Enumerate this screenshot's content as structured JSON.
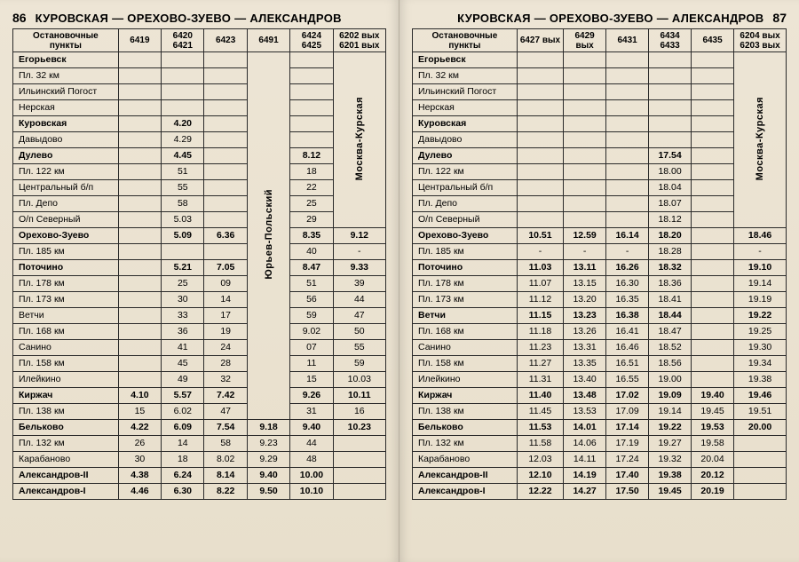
{
  "left": {
    "page_num": "86",
    "route": "КУРОВСКАЯ — ОРЕХОВО-ЗУЕВО — АЛЕКСАНДРОВ",
    "stops_header": "Остановочные пункты",
    "trains": [
      "6419",
      "6420\n6421",
      "6423",
      "6491",
      "6424\n6425",
      "6202 вых\n6201 вых"
    ],
    "vertical_labels": {
      "col5": "Юрьев-Польский",
      "col7": "Москва-Курская"
    },
    "rows": [
      {
        "stop": "Егорьевск",
        "bold": true,
        "c": [
          "",
          "",
          "",
          "",
          "",
          ""
        ]
      },
      {
        "stop": "Пл. 32 км",
        "bold": false,
        "c": [
          "",
          "",
          "",
          "",
          "",
          ""
        ]
      },
      {
        "stop": "Ильинский Погост",
        "bold": false,
        "c": [
          "",
          "",
          "",
          "",
          "",
          ""
        ]
      },
      {
        "stop": "Нерская",
        "bold": false,
        "c": [
          "",
          "",
          "",
          "",
          "",
          ""
        ]
      },
      {
        "stop": "Куровская",
        "bold": true,
        "c": [
          "",
          "4.20",
          "",
          "",
          "",
          ""
        ]
      },
      {
        "stop": "Давыдово",
        "bold": false,
        "c": [
          "",
          "4.29",
          "",
          "",
          "",
          ""
        ]
      },
      {
        "stop": "Дулево",
        "bold": true,
        "c": [
          "",
          "4.45",
          "",
          "",
          "8.12",
          ""
        ]
      },
      {
        "stop": "Пл. 122 км",
        "bold": false,
        "c": [
          "",
          "51",
          "",
          "",
          "18",
          ""
        ]
      },
      {
        "stop": "Центральный б/п",
        "bold": false,
        "c": [
          "",
          "55",
          "",
          "",
          "22",
          ""
        ]
      },
      {
        "stop": "Пл. Депо",
        "bold": false,
        "c": [
          "",
          "58",
          "",
          "",
          "25",
          ""
        ]
      },
      {
        "stop": "О/п Северный",
        "bold": false,
        "c": [
          "",
          "5.03",
          "",
          "",
          "29",
          ""
        ]
      },
      {
        "stop": "Орехово-Зуево",
        "bold": true,
        "c": [
          "",
          "5.09",
          "6.36",
          "",
          "8.35",
          "9.12"
        ]
      },
      {
        "stop": "Пл. 185 км",
        "bold": false,
        "c": [
          "",
          "",
          "",
          "",
          "40",
          "-"
        ]
      },
      {
        "stop": "Поточино",
        "bold": true,
        "c": [
          "",
          "5.21",
          "7.05",
          "",
          "8.47",
          "9.33"
        ]
      },
      {
        "stop": "Пл. 178 км",
        "bold": false,
        "c": [
          "",
          "25",
          "09",
          "",
          "51",
          "39"
        ]
      },
      {
        "stop": "Пл. 173 км",
        "bold": false,
        "c": [
          "",
          "30",
          "14",
          "",
          "56",
          "44"
        ]
      },
      {
        "stop": "Ветчи",
        "bold": false,
        "c": [
          "",
          "33",
          "17",
          "",
          "59",
          "47"
        ]
      },
      {
        "stop": "Пл. 168 км",
        "bold": false,
        "c": [
          "",
          "36",
          "19",
          "",
          "9.02",
          "50"
        ]
      },
      {
        "stop": "Санино",
        "bold": false,
        "c": [
          "",
          "41",
          "24",
          "",
          "07",
          "55"
        ]
      },
      {
        "stop": "Пл. 158 км",
        "bold": false,
        "c": [
          "",
          "45",
          "28",
          "",
          "11",
          "59"
        ]
      },
      {
        "stop": "Илейкино",
        "bold": false,
        "c": [
          "",
          "49",
          "32",
          "",
          "15",
          "10.03"
        ]
      },
      {
        "stop": "Киржач",
        "bold": true,
        "c": [
          "4.10",
          "5.57",
          "7.42",
          "",
          "9.26",
          "10.11"
        ]
      },
      {
        "stop": "Пл. 138 км",
        "bold": false,
        "c": [
          "15",
          "6.02",
          "47",
          "",
          "31",
          "16"
        ]
      },
      {
        "stop": "Бельково",
        "bold": true,
        "c": [
          "4.22",
          "6.09",
          "7.54",
          "9.18",
          "9.40",
          "10.23"
        ]
      },
      {
        "stop": "Пл. 132 км",
        "bold": false,
        "c": [
          "26",
          "14",
          "58",
          "9.23",
          "44",
          ""
        ]
      },
      {
        "stop": "Карабаново",
        "bold": false,
        "c": [
          "30",
          "18",
          "8.02",
          "9.29",
          "48",
          ""
        ]
      },
      {
        "stop": "Александров-II",
        "bold": true,
        "c": [
          "4.38",
          "6.24",
          "8.14",
          "9.40",
          "10.00",
          ""
        ]
      },
      {
        "stop": "Александров-I",
        "bold": true,
        "c": [
          "4.46",
          "6.30",
          "8.22",
          "9.50",
          "10.10",
          ""
        ]
      }
    ]
  },
  "right": {
    "page_num": "87",
    "route": "КУРОВСКАЯ — ОРЕХОВО-ЗУЕВО — АЛЕКСАНДРОВ",
    "stops_header": "Остановочные пункты",
    "trains": [
      "6427 вых",
      "6429\nвых",
      "6431",
      "6434\n6433",
      "6435",
      "6204 вых\n6203 вых"
    ],
    "vertical_labels": {
      "col7": "Москва-Курская"
    },
    "rows": [
      {
        "stop": "Егорьевск",
        "bold": true,
        "c": [
          "",
          "",
          "",
          "",
          "",
          ""
        ]
      },
      {
        "stop": "Пл. 32 км",
        "bold": false,
        "c": [
          "",
          "",
          "",
          "",
          "",
          ""
        ]
      },
      {
        "stop": "Ильинский Погост",
        "bold": false,
        "c": [
          "",
          "",
          "",
          "",
          "",
          ""
        ]
      },
      {
        "stop": "Нерская",
        "bold": false,
        "c": [
          "",
          "",
          "",
          "",
          "",
          ""
        ]
      },
      {
        "stop": "Куровская",
        "bold": true,
        "c": [
          "",
          "",
          "",
          "",
          "",
          ""
        ]
      },
      {
        "stop": "Давыдово",
        "bold": false,
        "c": [
          "",
          "",
          "",
          "",
          "",
          ""
        ]
      },
      {
        "stop": "Дулево",
        "bold": true,
        "c": [
          "",
          "",
          "",
          "17.54",
          "",
          ""
        ]
      },
      {
        "stop": "Пл. 122 км",
        "bold": false,
        "c": [
          "",
          "",
          "",
          "18.00",
          "",
          ""
        ]
      },
      {
        "stop": "Центральный б/п",
        "bold": false,
        "c": [
          "",
          "",
          "",
          "18.04",
          "",
          ""
        ]
      },
      {
        "stop": "Пл. Депо",
        "bold": false,
        "c": [
          "",
          "",
          "",
          "18.07",
          "",
          ""
        ]
      },
      {
        "stop": "О/п Северный",
        "bold": false,
        "c": [
          "",
          "",
          "",
          "18.12",
          "",
          ""
        ]
      },
      {
        "stop": "Орехово-Зуево",
        "bold": true,
        "c": [
          "10.51",
          "12.59",
          "16.14",
          "18.20",
          "",
          "18.46"
        ]
      },
      {
        "stop": "Пл. 185 км",
        "bold": false,
        "c": [
          "-",
          "-",
          "-",
          "18.28",
          "",
          "-"
        ]
      },
      {
        "stop": "Поточино",
        "bold": true,
        "c": [
          "11.03",
          "13.11",
          "16.26",
          "18.32",
          "",
          "19.10"
        ]
      },
      {
        "stop": "Пл. 178 км",
        "bold": false,
        "c": [
          "11.07",
          "13.15",
          "16.30",
          "18.36",
          "",
          "19.14"
        ]
      },
      {
        "stop": "Пл. 173 км",
        "bold": false,
        "c": [
          "11.12",
          "13.20",
          "16.35",
          "18.41",
          "",
          "19.19"
        ]
      },
      {
        "stop": "Ветчи",
        "bold": true,
        "c": [
          "11.15",
          "13.23",
          "16.38",
          "18.44",
          "",
          "19.22"
        ]
      },
      {
        "stop": "Пл. 168 км",
        "bold": false,
        "c": [
          "11.18",
          "13.26",
          "16.41",
          "18.47",
          "",
          "19.25"
        ]
      },
      {
        "stop": "Санино",
        "bold": false,
        "c": [
          "11.23",
          "13.31",
          "16.46",
          "18.52",
          "",
          "19.30"
        ]
      },
      {
        "stop": "Пл. 158 км",
        "bold": false,
        "c": [
          "11.27",
          "13.35",
          "16.51",
          "18.56",
          "",
          "19.34"
        ]
      },
      {
        "stop": "Илейкино",
        "bold": false,
        "c": [
          "11.31",
          "13.40",
          "16.55",
          "19.00",
          "",
          "19.38"
        ]
      },
      {
        "stop": "Киржач",
        "bold": true,
        "c": [
          "11.40",
          "13.48",
          "17.02",
          "19.09",
          "19.40",
          "19.46"
        ]
      },
      {
        "stop": "Пл. 138 км",
        "bold": false,
        "c": [
          "11.45",
          "13.53",
          "17.09",
          "19.14",
          "19.45",
          "19.51"
        ]
      },
      {
        "stop": "Бельково",
        "bold": true,
        "c": [
          "11.53",
          "14.01",
          "17.14",
          "19.22",
          "19.53",
          "20.00"
        ]
      },
      {
        "stop": "Пл. 132 км",
        "bold": false,
        "c": [
          "11.58",
          "14.06",
          "17.19",
          "19.27",
          "19.58",
          ""
        ]
      },
      {
        "stop": "Карабаново",
        "bold": false,
        "c": [
          "12.03",
          "14.11",
          "17.24",
          "19.32",
          "20.04",
          ""
        ]
      },
      {
        "stop": "Александров-II",
        "bold": true,
        "c": [
          "12.10",
          "14.19",
          "17.40",
          "19.38",
          "20.12",
          ""
        ]
      },
      {
        "stop": "Александров-I",
        "bold": true,
        "c": [
          "12.22",
          "14.27",
          "17.50",
          "19.45",
          "20.19",
          ""
        ]
      }
    ]
  }
}
